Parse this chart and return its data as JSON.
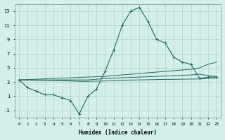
{
  "x": [
    0,
    1,
    2,
    3,
    4,
    5,
    6,
    7,
    8,
    9,
    10,
    11,
    12,
    13,
    14,
    15,
    16,
    17,
    18,
    19,
    20,
    21,
    22,
    23
  ],
  "y_main": [
    3.3,
    2.2,
    1.7,
    1.2,
    1.2,
    0.8,
    0.4,
    -1.5,
    1.0,
    2.0,
    4.5,
    7.5,
    11.0,
    13.0,
    13.5,
    11.5,
    9.0,
    8.5,
    6.5,
    5.8,
    5.5,
    3.5,
    3.7,
    3.7
  ],
  "y_line1": [
    3.3,
    3.35,
    3.4,
    3.45,
    3.5,
    3.55,
    3.6,
    3.65,
    3.7,
    3.75,
    3.8,
    3.9,
    4.0,
    4.1,
    4.2,
    4.3,
    4.4,
    4.5,
    4.6,
    4.7,
    4.8,
    5.0,
    5.5,
    5.8
  ],
  "y_line2": [
    3.3,
    3.3,
    3.3,
    3.3,
    3.3,
    3.3,
    3.3,
    3.3,
    3.3,
    3.4,
    3.5,
    3.55,
    3.6,
    3.65,
    3.7,
    3.75,
    3.8,
    3.85,
    3.9,
    3.95,
    4.0,
    4.1,
    3.9,
    3.8
  ],
  "y_line3": [
    3.3,
    3.28,
    3.25,
    3.23,
    3.2,
    3.18,
    3.15,
    3.1,
    3.1,
    3.12,
    3.15,
    3.2,
    3.25,
    3.28,
    3.3,
    3.32,
    3.35,
    3.37,
    3.38,
    3.4,
    3.42,
    3.43,
    3.5,
    3.6
  ],
  "color": "#1a6b5e",
  "bg_color": "#d4eeea",
  "grid_color": "#b0cfc9",
  "xlabel": "Humidex (Indice chaleur)",
  "ylim": [
    -2,
    14
  ],
  "xlim": [
    -0.5,
    23.5
  ],
  "yticks": [
    -1,
    1,
    3,
    5,
    7,
    9,
    11,
    13
  ],
  "xticks": [
    0,
    1,
    2,
    3,
    4,
    5,
    6,
    7,
    8,
    9,
    10,
    11,
    12,
    13,
    14,
    15,
    16,
    17,
    18,
    19,
    20,
    21,
    22,
    23
  ]
}
